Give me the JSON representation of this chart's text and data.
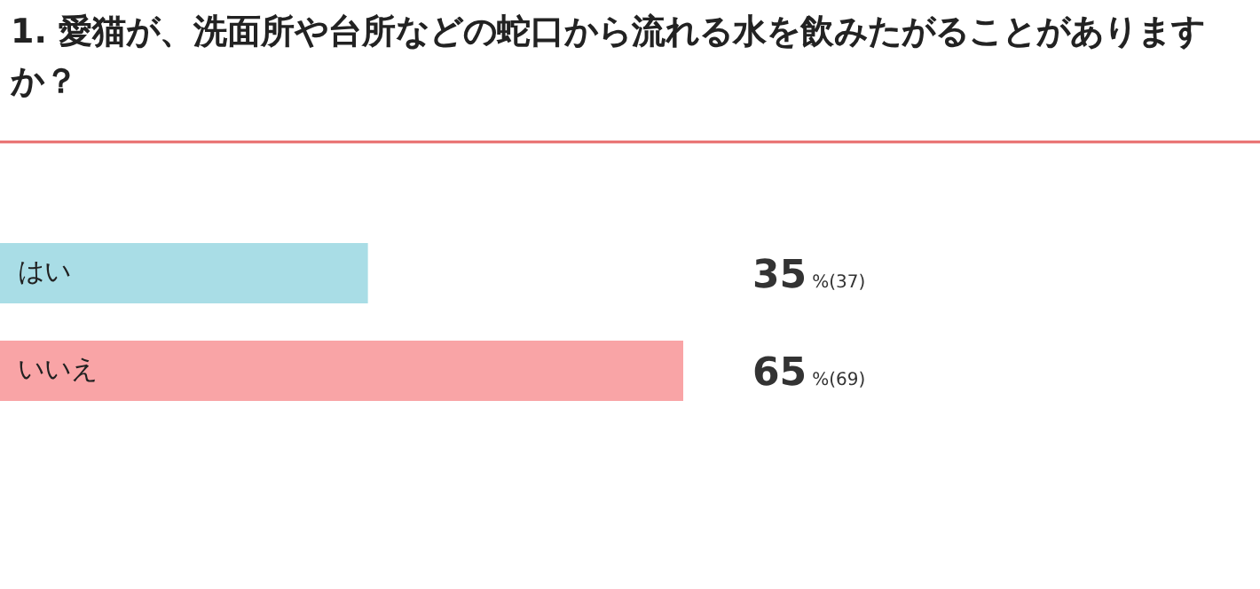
{
  "chart_data": {
    "type": "bar",
    "orientation": "horizontal",
    "title": "1. 愛猫が、洗面所や台所などの蛇口から流れる水を飲みたがることがありますか？",
    "categories": [
      "はい",
      "いいえ"
    ],
    "values": [
      35,
      65
    ],
    "colors": [
      "#a9dde6",
      "#f9a4a6"
    ],
    "value_labels": [
      "35%(37)",
      "65%(69)"
    ]
  }
}
